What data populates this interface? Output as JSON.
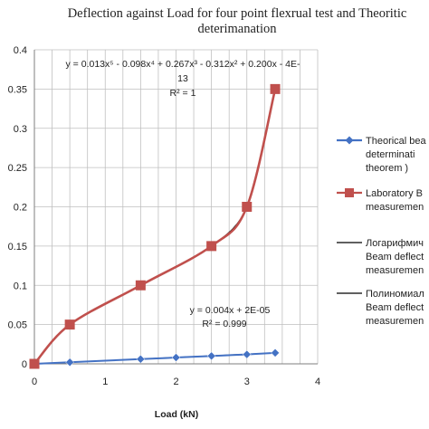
{
  "chart_data": {
    "type": "line",
    "title_lines": [
      "Deflection against Load for four point flexrual test and Theoritic",
      "deterimanation"
    ],
    "xlabel": "Load (kN)",
    "ylabel": "",
    "xlim": [
      0,
      4
    ],
    "ylim": [
      0,
      0.4
    ],
    "x_ticks": [
      "0",
      "1",
      "2",
      "3",
      "4"
    ],
    "y_ticks": [
      "0",
      "0.05",
      "0.1",
      "0.15",
      "0.2",
      "0.25",
      "0.3",
      "0.35",
      "0.4"
    ],
    "grid": true,
    "legend_position": "right",
    "series": [
      {
        "name_lines": [
          "Theorical bea",
          "determinati",
          "theorem )"
        ],
        "color": "#4472c4",
        "marker": "diamond",
        "x": [
          0,
          0.5,
          1.5,
          2,
          2.5,
          3,
          3.4
        ],
        "y": [
          0,
          0.002,
          0.006,
          0.008,
          0.01,
          0.012,
          0.014
        ]
      },
      {
        "name_lines": [
          "Laboratory B",
          "measuremen"
        ],
        "color": "#c0504d",
        "marker": "square",
        "x": [
          0,
          0.5,
          1.5,
          2.5,
          3,
          3.4
        ],
        "y": [
          0,
          0.05,
          0.1,
          0.15,
          0.2,
          0.35
        ]
      },
      {
        "name_lines": [
          "Логарифмич",
          "Beam deflect",
          "measuremen"
        ],
        "color": "#000000",
        "marker": "none"
      },
      {
        "name_lines": [
          "Полиномиал",
          "Beam deflect",
          "measuremen"
        ],
        "color": "#000000",
        "marker": "none"
      }
    ],
    "annotations": [
      {
        "lines": [
          "y = 0.013x⁵ - 0.098x⁴ + 0.267x³ - 0.312x² + 0.200x - 4E-",
          "13",
          "R² = 1"
        ]
      },
      {
        "lines": [
          "y = 0.004x + 2E-05",
          "R² = 0.999"
        ]
      }
    ]
  }
}
